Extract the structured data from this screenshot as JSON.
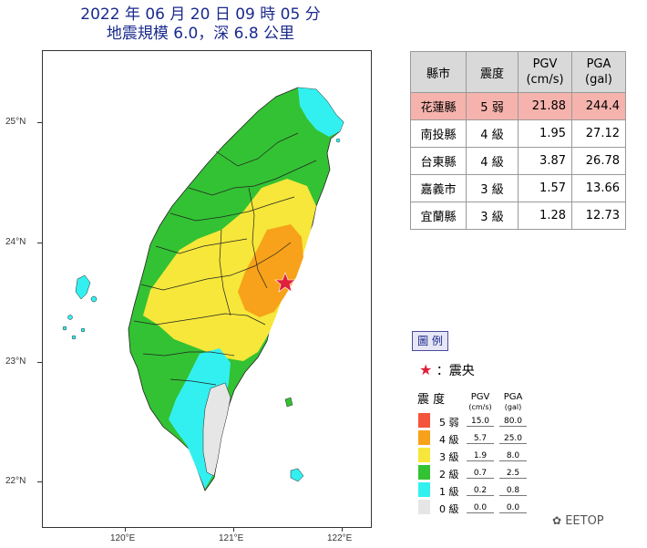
{
  "header": {
    "line1": "2022 年 06 月 20 日 09 時 05 分",
    "line2": "地震規模 6.0，深 6.8 公里"
  },
  "map": {
    "lat_labels": [
      "25°N",
      "24°N",
      "23°N",
      "22°N"
    ],
    "lon_labels": [
      "120°E",
      "121°E",
      "122°E"
    ],
    "epicenter_color": "#e0203a"
  },
  "table": {
    "headers": [
      "縣市",
      "震度",
      "PGV\n(cm/s)",
      "PGA\n(gal)"
    ],
    "rows": [
      {
        "county": "花蓮縣",
        "intensity": "5 弱",
        "pgv": "21.88",
        "pga": "244.4"
      },
      {
        "county": "南投縣",
        "intensity": "4 級",
        "pgv": "1.95",
        "pga": "27.12"
      },
      {
        "county": "台東縣",
        "intensity": "4 級",
        "pgv": "3.87",
        "pga": "26.78"
      },
      {
        "county": "嘉義市",
        "intensity": "3 級",
        "pgv": "1.57",
        "pga": "13.66"
      },
      {
        "county": "宜蘭縣",
        "intensity": "3 級",
        "pgv": "1.28",
        "pga": "12.73"
      }
    ]
  },
  "legend": {
    "title": "圖 例",
    "epicenter_label": "：震央",
    "intensity_header": "震 度",
    "pgv_header": "PGV",
    "pgv_unit": "(cm/s)",
    "pga_header": "PGA",
    "pga_unit": "(gal)",
    "levels": [
      {
        "label": "5 弱",
        "color": "#f4543c",
        "pgv": "15.0",
        "pga": "80.0"
      },
      {
        "label": "4 級",
        "color": "#f7a21a",
        "pgv": "5.7",
        "pga": "25.0"
      },
      {
        "label": "3 級",
        "color": "#f6e73a",
        "pgv": "1.9",
        "pga": "8.0"
      },
      {
        "label": "2 級",
        "color": "#33c233",
        "pgv": "0.7",
        "pga": "2.5"
      },
      {
        "label": "1 級",
        "color": "#33f0f0",
        "pgv": "0.2",
        "pga": "0.8"
      },
      {
        "label": "0 級",
        "color": "#e6e6e6",
        "pgv": "0.0",
        "pga": "0.0"
      }
    ]
  },
  "watermark": "EETOP"
}
